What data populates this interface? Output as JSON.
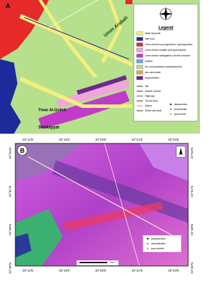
{
  "panel_a": {
    "label": "A",
    "places": [
      "Umm Arakah",
      "Tiwar Al-Qulleh",
      "Shukayyat"
    ],
    "legend": {
      "title": "Legend",
      "units": [
        {
          "label": "Wadi deposits",
          "color": "#f3ef7c"
        },
        {
          "label": "Nile river",
          "color": "#1c2b9c"
        },
        {
          "label": "Umm Anduli monzogranites, syenogranites",
          "color": "#e62a2a"
        },
        {
          "label": "Umm Ashira tonalite and granodiorite",
          "color": "#f2a4dc"
        },
        {
          "label": "Umm Ashira metagabbro-diorite complex",
          "color": "#c03cc8"
        },
        {
          "label": "marble",
          "color": "#6fa6e0"
        },
        {
          "label": "Arc volcaniclastic metasediments",
          "color": "#b6e08c"
        },
        {
          "label": "talc carbonate",
          "color": "#f0a040"
        },
        {
          "label": "serpentinites",
          "color": "#6a2a8a"
        }
      ],
      "symbols": [
        "Dip",
        "marble Quarry",
        "Highway",
        "Thrust fault",
        "Dykes",
        "Strike slip fault"
      ],
      "rocks": [
        "listwaenites",
        "amphibolite",
        "pyroxenite"
      ]
    }
  },
  "panel_b": {
    "label": "B",
    "x_labels": [
      "33°12'E",
      "33°15'E",
      "33°18'E",
      "33°21'E",
      "33°24'E"
    ],
    "y_labels": [
      "22°54'N",
      "22°51'N",
      "22°48'N",
      "22°45'N"
    ],
    "rocks": [
      "listwaenites",
      "amphibolite",
      "pyroxenite"
    ],
    "scale": "Km"
  }
}
